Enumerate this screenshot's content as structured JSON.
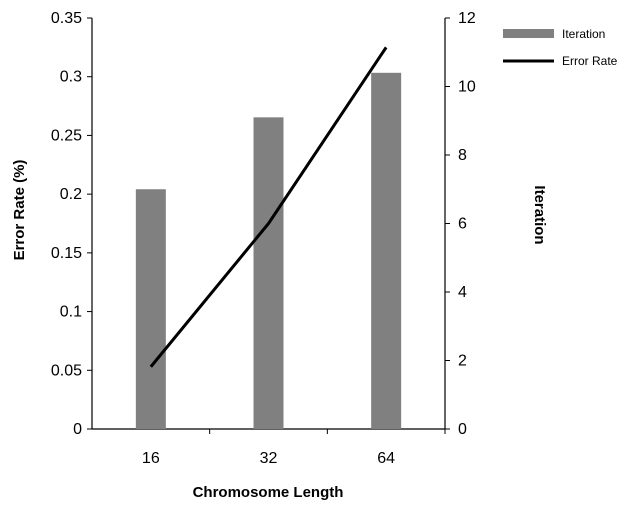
{
  "chart_data": {
    "type": "bar",
    "categories": [
      "16",
      "32",
      "64"
    ],
    "xlabel": "Chromosome Length",
    "ylabel_left": "Error Rate (%)",
    "ylabel_right": "Iteration",
    "ylim_left": [
      0,
      0.35
    ],
    "ylim_right": [
      0,
      12
    ],
    "yticks_left": [
      "0",
      "0.05",
      "0.1",
      "0.15",
      "0.2",
      "0.25",
      "0.3",
      "0.35"
    ],
    "yticks_right": [
      "0",
      "2",
      "4",
      "6",
      "8",
      "10",
      "12"
    ],
    "grid": false,
    "legend_position": "top-right",
    "series": [
      {
        "name": "Iteration",
        "type": "bar",
        "axis": "right",
        "color": "#808080",
        "values": [
          7.0,
          9.1,
          10.4
        ]
      },
      {
        "name": "Error Rate",
        "type": "line",
        "axis": "left",
        "color": "#000000",
        "values": [
          0.053,
          0.175,
          0.325
        ]
      }
    ]
  }
}
